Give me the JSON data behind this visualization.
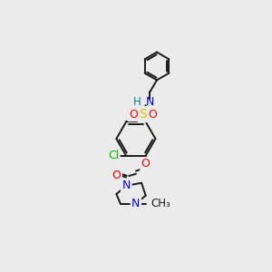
{
  "bg_color": "#ebebeb",
  "bond_color": "#1a1a1a",
  "atom_colors": {
    "N": "#0000ff",
    "O": "#ff0000",
    "S": "#cccc00",
    "Cl": "#00bb00",
    "H": "#555555",
    "C": "#1a1a1a"
  },
  "figsize": [
    3.0,
    3.0
  ],
  "dpi": 100
}
